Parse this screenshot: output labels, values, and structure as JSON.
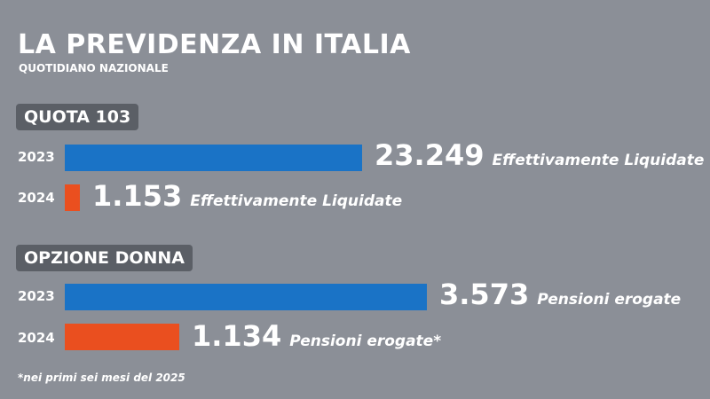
{
  "header": {
    "title": "LA PREVIDENZA IN ITALIA",
    "subtitle": "QUOTIDIANO NAZIONALE"
  },
  "footnote": "*nei primi sei mesi del 2025",
  "colors": {
    "background": "#8b8f97",
    "label_bg": "#5b5f66",
    "bar_2023": "#1a73c6",
    "bar_2024": "#ea4f1f"
  },
  "chart_data": [
    {
      "type": "bar",
      "orientation": "horizontal",
      "title": "QUOTA 103",
      "categories": [
        "2023",
        "2024"
      ],
      "values": [
        23249,
        1153
      ],
      "value_labels": [
        "23.249",
        "1.153"
      ],
      "annotations": [
        "Effettivamente Liquidate",
        "Effettivamente Liquidate"
      ],
      "colors": [
        "#1a73c6",
        "#ea4f1f"
      ]
    },
    {
      "type": "bar",
      "orientation": "horizontal",
      "title": "OPZIONE DONNA",
      "categories": [
        "2023",
        "2024"
      ],
      "values": [
        3573,
        1134
      ],
      "value_labels": [
        "3.573",
        "1.134"
      ],
      "annotations": [
        "Pensioni erogate",
        "Pensioni erogate*"
      ],
      "colors": [
        "#1a73c6",
        "#ea4f1f"
      ]
    }
  ]
}
